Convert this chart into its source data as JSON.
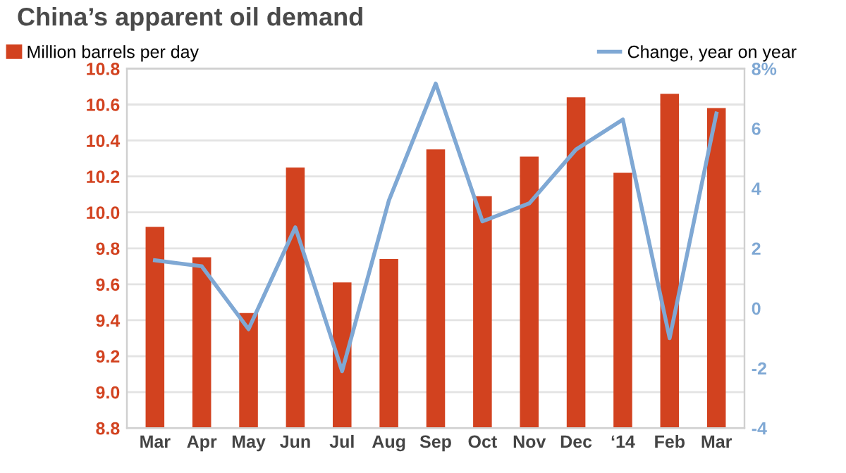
{
  "chart_data": {
    "type": "bar",
    "title": "China’s apparent oil demand",
    "categories": [
      "Mar",
      "Apr",
      "May",
      "Jun",
      "Jul",
      "Aug",
      "Sep",
      "Oct",
      "Nov",
      "Dec",
      "‘14",
      "Feb",
      "Mar"
    ],
    "series": [
      {
        "name": "Million barrels per day",
        "color": "#d2421f",
        "values": [
          9.92,
          9.75,
          9.44,
          10.25,
          9.61,
          9.74,
          10.35,
          10.09,
          10.31,
          10.64,
          10.22,
          10.66,
          10.58
        ]
      },
      {
        "name": "Change, year on year",
        "type": "line",
        "axis": "y2",
        "color": "#7fa8d4",
        "values": [
          1.6,
          1.4,
          -0.7,
          2.7,
          -2.1,
          3.6,
          7.5,
          2.9,
          3.5,
          5.3,
          6.3,
          -1.0,
          6.5
        ]
      }
    ],
    "ylim": [
      8.8,
      10.8
    ],
    "yticks": [
      {
        "value": 8.8,
        "label": "8.8"
      },
      {
        "value": 9.0,
        "label": "9.0"
      },
      {
        "value": 9.2,
        "label": "9.2"
      },
      {
        "value": 9.4,
        "label": "9.4"
      },
      {
        "value": 9.6,
        "label": "9.6"
      },
      {
        "value": 9.8,
        "label": "9.8"
      },
      {
        "value": 10.0,
        "label": "10.0"
      },
      {
        "value": 10.2,
        "label": "10.2"
      },
      {
        "value": 10.4,
        "label": "10.4"
      },
      {
        "value": 10.6,
        "label": "10.6"
      },
      {
        "value": 10.8,
        "label": "10.8"
      }
    ],
    "y2lim": [
      -4,
      8
    ],
    "y2ticks": [
      -4,
      -2,
      0,
      2,
      4,
      6,
      {
        "value": 8,
        "label": "8%"
      }
    ],
    "grid": "y",
    "legend": "top",
    "marker": "none"
  }
}
